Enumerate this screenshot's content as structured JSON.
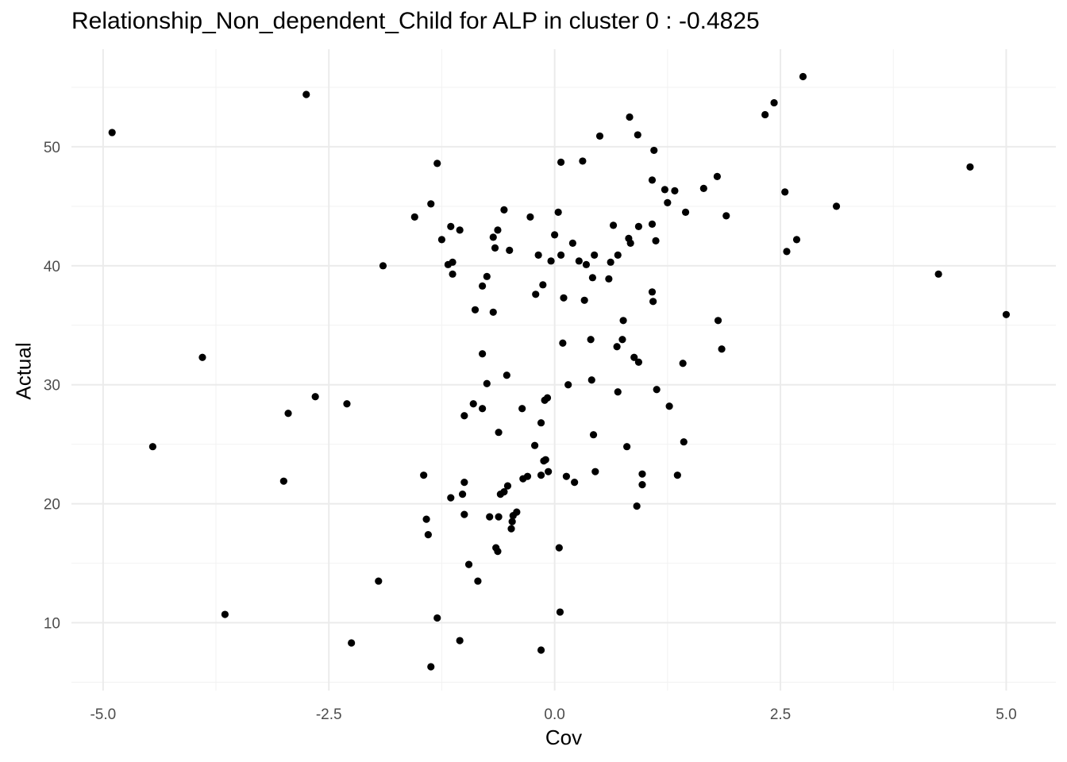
{
  "chart_data": {
    "type": "scatter",
    "title": "Relationship_Non_dependent_Child for ALP in cluster 0 : -0.4825",
    "xlabel": "Cov",
    "ylabel": "Actual",
    "xlim": [
      -5.35,
      5.55
    ],
    "ylim": [
      4.3,
      58.2
    ],
    "x_ticks": [
      -5.0,
      -2.5,
      0.0,
      2.5,
      5.0
    ],
    "x_tick_labels": [
      "-5.0",
      "-2.5",
      "0.0",
      "2.5",
      "5.0"
    ],
    "y_ticks": [
      10,
      20,
      30,
      40,
      50
    ],
    "y_tick_labels": [
      "10",
      "20",
      "30",
      "40",
      "50"
    ],
    "grid": true,
    "point_color": "#000000",
    "points": [
      {
        "x": -4.9,
        "y": 51.2
      },
      {
        "x": -2.75,
        "y": 54.4
      },
      {
        "x": -3.9,
        "y": 32.3
      },
      {
        "x": -4.45,
        "y": 24.8
      },
      {
        "x": -3.65,
        "y": 10.7
      },
      {
        "x": -3.0,
        "y": 21.9
      },
      {
        "x": -2.95,
        "y": 27.6
      },
      {
        "x": -2.65,
        "y": 29.0
      },
      {
        "x": -2.3,
        "y": 28.4
      },
      {
        "x": -2.25,
        "y": 8.3
      },
      {
        "x": -1.95,
        "y": 13.5
      },
      {
        "x": -1.9,
        "y": 40.0
      },
      {
        "x": -1.55,
        "y": 44.1
      },
      {
        "x": -1.45,
        "y": 22.4
      },
      {
        "x": -1.42,
        "y": 18.7
      },
      {
        "x": -1.4,
        "y": 17.4
      },
      {
        "x": -1.37,
        "y": 45.2
      },
      {
        "x": -1.37,
        "y": 6.3
      },
      {
        "x": -1.3,
        "y": 48.6
      },
      {
        "x": -1.3,
        "y": 10.4
      },
      {
        "x": -1.25,
        "y": 42.2
      },
      {
        "x": -1.18,
        "y": 40.1
      },
      {
        "x": -1.15,
        "y": 43.3
      },
      {
        "x": -1.13,
        "y": 40.3
      },
      {
        "x": -1.13,
        "y": 39.3
      },
      {
        "x": -1.15,
        "y": 20.5
      },
      {
        "x": -1.05,
        "y": 43.0
      },
      {
        "x": -1.05,
        "y": 8.5
      },
      {
        "x": -1.02,
        "y": 20.8
      },
      {
        "x": -1.0,
        "y": 19.1
      },
      {
        "x": -1.0,
        "y": 21.8
      },
      {
        "x": -1.0,
        "y": 27.4
      },
      {
        "x": -0.95,
        "y": 14.9
      },
      {
        "x": -0.9,
        "y": 28.4
      },
      {
        "x": -0.88,
        "y": 36.3
      },
      {
        "x": -0.85,
        "y": 13.5
      },
      {
        "x": -0.8,
        "y": 38.3
      },
      {
        "x": -0.8,
        "y": 32.6
      },
      {
        "x": -0.8,
        "y": 28.0
      },
      {
        "x": -0.75,
        "y": 39.1
      },
      {
        "x": -0.75,
        "y": 30.1
      },
      {
        "x": -0.72,
        "y": 18.9
      },
      {
        "x": -0.68,
        "y": 36.1
      },
      {
        "x": -0.68,
        "y": 42.4
      },
      {
        "x": -0.66,
        "y": 41.5
      },
      {
        "x": -0.65,
        "y": 16.3
      },
      {
        "x": -0.63,
        "y": 16.0
      },
      {
        "x": -0.63,
        "y": 43.0
      },
      {
        "x": -0.62,
        "y": 26.0
      },
      {
        "x": -0.62,
        "y": 18.9
      },
      {
        "x": -0.6,
        "y": 20.8
      },
      {
        "x": -0.56,
        "y": 21.0
      },
      {
        "x": -0.56,
        "y": 44.7
      },
      {
        "x": -0.53,
        "y": 30.8
      },
      {
        "x": -0.52,
        "y": 21.5
      },
      {
        "x": -0.5,
        "y": 41.3
      },
      {
        "x": -0.48,
        "y": 17.9
      },
      {
        "x": -0.47,
        "y": 18.5
      },
      {
        "x": -0.46,
        "y": 19.0
      },
      {
        "x": -0.42,
        "y": 19.3
      },
      {
        "x": -0.36,
        "y": 28.0
      },
      {
        "x": -0.35,
        "y": 22.1
      },
      {
        "x": -0.3,
        "y": 22.3
      },
      {
        "x": -0.27,
        "y": 44.1
      },
      {
        "x": -0.22,
        "y": 24.9
      },
      {
        "x": -0.21,
        "y": 37.6
      },
      {
        "x": -0.18,
        "y": 40.9
      },
      {
        "x": -0.15,
        "y": 26.8
      },
      {
        "x": -0.15,
        "y": 22.4
      },
      {
        "x": -0.15,
        "y": 7.7
      },
      {
        "x": -0.13,
        "y": 38.4
      },
      {
        "x": -0.12,
        "y": 23.6
      },
      {
        "x": -0.11,
        "y": 28.7
      },
      {
        "x": -0.1,
        "y": 23.7
      },
      {
        "x": -0.08,
        "y": 28.9
      },
      {
        "x": -0.07,
        "y": 22.7
      },
      {
        "x": -0.04,
        "y": 40.4
      },
      {
        "x": 0.0,
        "y": 42.6
      },
      {
        "x": 0.04,
        "y": 44.5
      },
      {
        "x": 0.05,
        "y": 16.3
      },
      {
        "x": 0.06,
        "y": 10.9
      },
      {
        "x": 0.07,
        "y": 40.9
      },
      {
        "x": 0.07,
        "y": 48.7
      },
      {
        "x": 0.09,
        "y": 33.5
      },
      {
        "x": 0.1,
        "y": 37.3
      },
      {
        "x": 0.13,
        "y": 22.3
      },
      {
        "x": 0.15,
        "y": 30.0
      },
      {
        "x": 0.2,
        "y": 41.9
      },
      {
        "x": 0.22,
        "y": 21.8
      },
      {
        "x": 0.27,
        "y": 40.4
      },
      {
        "x": 0.31,
        "y": 48.8
      },
      {
        "x": 0.33,
        "y": 37.1
      },
      {
        "x": 0.35,
        "y": 40.1
      },
      {
        "x": 0.4,
        "y": 33.8
      },
      {
        "x": 0.41,
        "y": 30.4
      },
      {
        "x": 0.42,
        "y": 39.0
      },
      {
        "x": 0.43,
        "y": 25.8
      },
      {
        "x": 0.44,
        "y": 40.9
      },
      {
        "x": 0.45,
        "y": 22.7
      },
      {
        "x": 0.5,
        "y": 50.9
      },
      {
        "x": 0.6,
        "y": 38.9
      },
      {
        "x": 0.62,
        "y": 40.3
      },
      {
        "x": 0.65,
        "y": 43.4
      },
      {
        "x": 0.69,
        "y": 33.2
      },
      {
        "x": 0.7,
        "y": 29.4
      },
      {
        "x": 0.7,
        "y": 40.9
      },
      {
        "x": 0.75,
        "y": 33.8
      },
      {
        "x": 0.76,
        "y": 35.4
      },
      {
        "x": 0.8,
        "y": 24.8
      },
      {
        "x": 0.82,
        "y": 42.3
      },
      {
        "x": 0.83,
        "y": 52.5
      },
      {
        "x": 0.84,
        "y": 41.9
      },
      {
        "x": 0.88,
        "y": 32.3
      },
      {
        "x": 0.91,
        "y": 19.8
      },
      {
        "x": 0.92,
        "y": 51.0
      },
      {
        "x": 0.93,
        "y": 43.3
      },
      {
        "x": 0.93,
        "y": 31.9
      },
      {
        "x": 0.97,
        "y": 22.5
      },
      {
        "x": 0.97,
        "y": 21.6
      },
      {
        "x": 1.08,
        "y": 47.2
      },
      {
        "x": 1.08,
        "y": 43.5
      },
      {
        "x": 1.08,
        "y": 37.8
      },
      {
        "x": 1.09,
        "y": 37.0
      },
      {
        "x": 1.1,
        "y": 49.7
      },
      {
        "x": 1.12,
        "y": 42.1
      },
      {
        "x": 1.13,
        "y": 29.6
      },
      {
        "x": 1.22,
        "y": 46.4
      },
      {
        "x": 1.25,
        "y": 45.3
      },
      {
        "x": 1.27,
        "y": 28.2
      },
      {
        "x": 1.33,
        "y": 46.3
      },
      {
        "x": 1.36,
        "y": 22.4
      },
      {
        "x": 1.42,
        "y": 31.8
      },
      {
        "x": 1.43,
        "y": 25.2
      },
      {
        "x": 1.45,
        "y": 44.5
      },
      {
        "x": 1.65,
        "y": 46.5
      },
      {
        "x": 1.8,
        "y": 47.5
      },
      {
        "x": 1.81,
        "y": 35.4
      },
      {
        "x": 1.85,
        "y": 33.0
      },
      {
        "x": 1.9,
        "y": 44.2
      },
      {
        "x": 2.33,
        "y": 52.7
      },
      {
        "x": 2.43,
        "y": 53.7
      },
      {
        "x": 2.55,
        "y": 46.2
      },
      {
        "x": 2.57,
        "y": 41.2
      },
      {
        "x": 2.68,
        "y": 42.2
      },
      {
        "x": 2.75,
        "y": 55.9
      },
      {
        "x": 3.12,
        "y": 45.0
      },
      {
        "x": 4.25,
        "y": 39.3
      },
      {
        "x": 4.6,
        "y": 48.3
      },
      {
        "x": 5.0,
        "y": 35.9
      }
    ]
  }
}
